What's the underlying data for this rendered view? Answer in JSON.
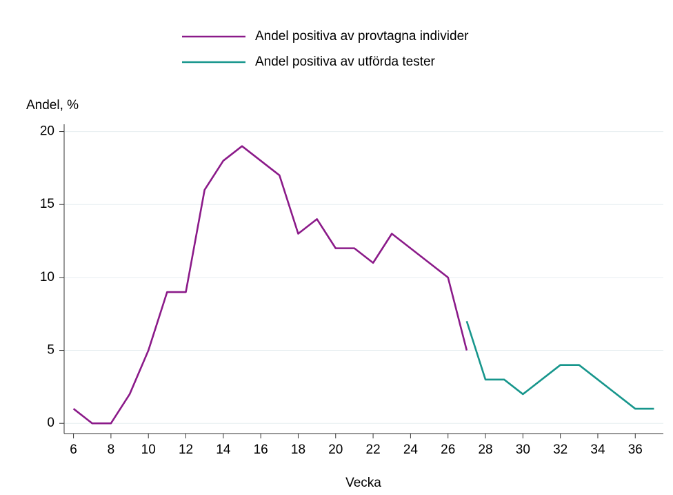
{
  "chart_data": {
    "type": "line",
    "y_label": "Andel, %",
    "x_label": "Vecka",
    "x": [
      6,
      7,
      8,
      9,
      10,
      11,
      12,
      13,
      14,
      15,
      16,
      17,
      18,
      19,
      20,
      21,
      22,
      23,
      24,
      25,
      26,
      27,
      28,
      29,
      30,
      31,
      32,
      33,
      34,
      35,
      36,
      37
    ],
    "series": [
      {
        "name": "Andel positiva av provtagna individer",
        "color": "#8b1a89",
        "values": [
          1,
          0,
          0,
          2,
          5,
          9,
          9,
          16,
          18,
          19,
          18,
          17,
          13,
          14,
          12,
          12,
          11,
          13,
          12,
          11,
          10,
          5,
          null,
          null,
          null,
          null,
          null,
          null,
          null,
          null,
          null,
          null
        ]
      },
      {
        "name": "Andel positiva av utförda tester",
        "color": "#17968c",
        "values": [
          null,
          null,
          null,
          null,
          null,
          null,
          null,
          null,
          null,
          null,
          null,
          null,
          null,
          null,
          null,
          null,
          null,
          null,
          null,
          null,
          null,
          7,
          3,
          3,
          2,
          3,
          4,
          4,
          3,
          2,
          1,
          1
        ]
      }
    ],
    "xlim": [
      5.5,
      37.5
    ],
    "ylim": [
      -0.7,
      20.5
    ],
    "xticks": [
      6,
      8,
      10,
      12,
      14,
      16,
      18,
      20,
      22,
      24,
      26,
      28,
      30,
      32,
      34,
      36
    ],
    "yticks": [
      0,
      5,
      10,
      15,
      20
    ],
    "grid": true,
    "legend": "top"
  }
}
